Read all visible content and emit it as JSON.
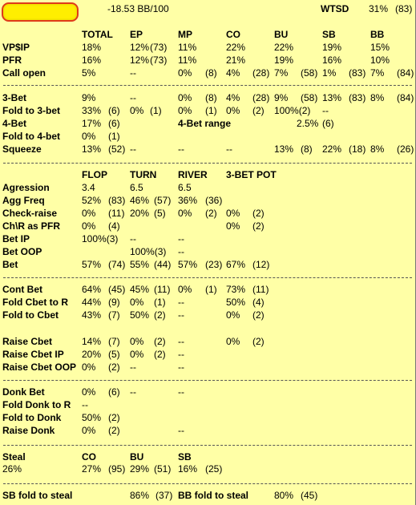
{
  "header": {
    "winrate": "-18.53 BB/100",
    "wtsd_label": "WTSD",
    "wtsd_value": "31%",
    "wtsd_count": "(83)"
  },
  "positions": [
    "TOTAL",
    "EP",
    "MP",
    "CO",
    "BU",
    "SB",
    "BB"
  ],
  "preflop": [
    {
      "label": "VP$IP",
      "cells": [
        [
          "18%",
          ""
        ],
        [
          "12%",
          "(73)"
        ],
        [
          "11%",
          ""
        ],
        [
          "22%",
          ""
        ],
        [
          "22%",
          ""
        ],
        [
          "19%",
          ""
        ],
        [
          "15%",
          ""
        ]
      ]
    },
    {
      "label": "PFR",
      "cells": [
        [
          "16%",
          ""
        ],
        [
          "12%",
          "(73)"
        ],
        [
          "11%",
          ""
        ],
        [
          "21%",
          ""
        ],
        [
          "19%",
          ""
        ],
        [
          "16%",
          ""
        ],
        [
          "10%",
          ""
        ]
      ]
    },
    {
      "label": "Call open",
      "cells": [
        [
          "5%",
          ""
        ],
        [
          "--",
          ""
        ],
        [
          "0%",
          "(8)"
        ],
        [
          "4%",
          "(28)"
        ],
        [
          "7%",
          "(58)"
        ],
        [
          "1%",
          "(83)"
        ],
        [
          "7%",
          "(84)"
        ]
      ]
    }
  ],
  "threebet": {
    "rows": [
      {
        "label": "3-Bet",
        "cells": [
          [
            "9%",
            ""
          ],
          [
            "--",
            ""
          ],
          [
            "0%",
            "(8)"
          ],
          [
            "4%",
            "(28)"
          ],
          [
            "9%",
            "(58)"
          ],
          [
            "13%",
            "(83)"
          ],
          [
            "8%",
            "(84)"
          ]
        ]
      },
      {
        "label": "Fold to 3-bet",
        "cells": [
          [
            "33%",
            "(6)"
          ],
          [
            "0%",
            "(1)"
          ],
          [
            "0%",
            "(1)"
          ],
          [
            "0%",
            "(2)"
          ],
          [
            "100%(2)",
            ""
          ],
          [
            "--",
            ""
          ],
          [
            "",
            ""
          ]
        ]
      }
    ],
    "fourbet": {
      "label": "4-Bet",
      "value": "17%",
      "count": "(6)",
      "range_label": "4-Bet range",
      "range_value": "2.5%",
      "range_count": "(6)"
    },
    "fold4": {
      "label": "Fold to 4-bet",
      "value": "0%",
      "count": "(1)"
    },
    "squeeze": {
      "label": "Squeeze",
      "cells": [
        [
          "13%",
          "(52)"
        ],
        [
          "--",
          ""
        ],
        [
          "--",
          ""
        ],
        [
          "--",
          ""
        ],
        [
          "13%",
          "(8)"
        ],
        [
          "22%",
          "(18)"
        ],
        [
          "8%",
          "(26)"
        ]
      ]
    }
  },
  "streets": [
    "FLOP",
    "TURN",
    "RIVER",
    "3-BET POT"
  ],
  "postflop": {
    "aggression": {
      "label": "Agression",
      "cells": [
        [
          "3.4",
          ""
        ],
        [
          "6.5",
          ""
        ],
        [
          "6.5",
          ""
        ],
        [
          "",
          ""
        ]
      ]
    },
    "rows": [
      {
        "label": "Agg Freq",
        "cells": [
          [
            "52%",
            "(83)"
          ],
          [
            "46%",
            "(57)"
          ],
          [
            "36%",
            "(36)"
          ],
          [
            "",
            ""
          ]
        ]
      },
      {
        "label": "Check-raise",
        "cells": [
          [
            "0%",
            "(11)"
          ],
          [
            "20%",
            "(5)"
          ],
          [
            "0%",
            "(2)"
          ],
          [
            "0%",
            "(2)"
          ]
        ]
      },
      {
        "label": "Ch\\R as PFR",
        "cells": [
          [
            "0%",
            "(4)"
          ],
          [
            "",
            ""
          ],
          [
            "",
            ""
          ],
          [
            "0%",
            "(2)"
          ]
        ]
      },
      {
        "label": "Bet IP",
        "cells": [
          [
            "100%(3)",
            ""
          ],
          [
            "--",
            ""
          ],
          [
            "--",
            ""
          ],
          [
            "",
            ""
          ]
        ]
      },
      {
        "label": "Bet OOP",
        "cells": [
          [
            "",
            ""
          ],
          [
            "100%(3)",
            ""
          ],
          [
            "--",
            ""
          ],
          [
            "",
            ""
          ]
        ]
      },
      {
        "label": "Bet",
        "cells": [
          [
            "57%",
            "(74)"
          ],
          [
            "55%",
            "(44)"
          ],
          [
            "57%",
            "(23)"
          ],
          [
            "67%",
            "(12)"
          ]
        ]
      }
    ]
  },
  "cbet": [
    {
      "label": "Cont Bet",
      "cells": [
        [
          "64%",
          "(45)"
        ],
        [
          "45%",
          "(11)"
        ],
        [
          "0%",
          "(1)"
        ],
        [
          "73%",
          "(11)"
        ]
      ]
    },
    {
      "label": "Fold Cbet to R",
      "cells": [
        [
          "44%",
          "(9)"
        ],
        [
          "0%",
          "(1)"
        ],
        [
          "--",
          ""
        ],
        [
          "50%",
          "(4)"
        ]
      ]
    },
    {
      "label": "Fold to Cbet",
      "cells": [
        [
          "43%",
          "(7)"
        ],
        [
          "50%",
          "(2)"
        ],
        [
          "--",
          ""
        ],
        [
          "0%",
          "(2)"
        ]
      ]
    }
  ],
  "raisecbet": [
    {
      "label": "Raise Cbet",
      "cells": [
        [
          "14%",
          "(7)"
        ],
        [
          "0%",
          "(2)"
        ],
        [
          "--",
          ""
        ],
        [
          "0%",
          "(2)"
        ]
      ]
    },
    {
      "label": "Raise Cbet IP",
      "cells": [
        [
          "20%",
          "(5)"
        ],
        [
          "0%",
          "(2)"
        ],
        [
          "--",
          ""
        ],
        [
          "",
          ""
        ]
      ]
    },
    {
      "label": "Raise Cbet OOP",
      "cells": [
        [
          "0%",
          "(2)"
        ],
        [
          "--",
          ""
        ],
        [
          "--",
          ""
        ],
        [
          "",
          ""
        ]
      ]
    }
  ],
  "donk": [
    {
      "label": "Donk Bet",
      "cells": [
        [
          "0%",
          "(6)"
        ],
        [
          "--",
          ""
        ],
        [
          "--",
          ""
        ],
        [
          "",
          ""
        ]
      ]
    },
    {
      "label": "Fold Donk to R",
      "cells": [
        [
          "--",
          ""
        ],
        [
          "",
          ""
        ],
        [
          "",
          ""
        ],
        [
          "",
          ""
        ]
      ]
    },
    {
      "label": "Fold to Donk",
      "cells": [
        [
          "50%",
          "(2)"
        ],
        [
          "",
          ""
        ],
        [
          "",
          ""
        ],
        [
          "",
          ""
        ]
      ]
    },
    {
      "label": "Raise Donk",
      "cells": [
        [
          "0%",
          "(2)"
        ],
        [
          "",
          ""
        ],
        [
          "--",
          ""
        ],
        [
          "",
          ""
        ]
      ]
    }
  ],
  "steal": {
    "label": "Steal",
    "total": "26%",
    "cols": [
      {
        "pos": "CO",
        "value": "27%",
        "count": "(95)"
      },
      {
        "pos": "BU",
        "value": "29%",
        "count": "(51)"
      },
      {
        "pos": "SB",
        "value": "16%",
        "count": "(25)"
      }
    ]
  },
  "foldsteal": {
    "sb_label": "SB fold to steal",
    "sb_value": "86%",
    "sb_count": "(37)",
    "bb_label": "BB fold to steal",
    "bb_value": "80%",
    "bb_count": "(45)"
  }
}
